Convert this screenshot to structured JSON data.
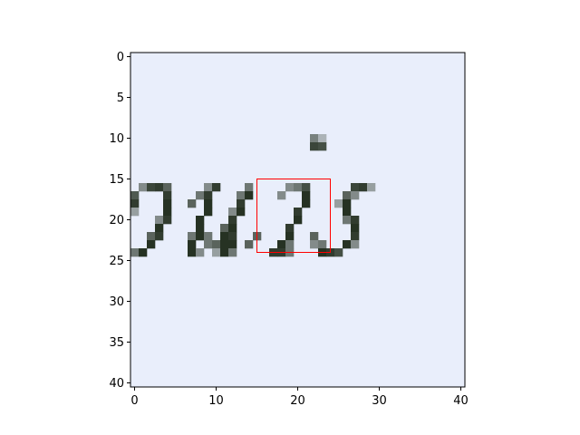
{
  "chart_data": {
    "type": "heatmap",
    "title": "",
    "xlabel": "",
    "ylabel": "",
    "xlim": [
      -0.5,
      40.5
    ],
    "ylim": [
      40.5,
      -0.5
    ],
    "x_ticks": [
      0,
      10,
      20,
      30,
      40
    ],
    "y_ticks": [
      0,
      5,
      10,
      15,
      20,
      25,
      30,
      35,
      40
    ],
    "grid": false,
    "background_color": "#e9eefb",
    "highlight_box": {
      "x": [
        15,
        24
      ],
      "y": [
        15,
        24
      ],
      "color": "#ff0000"
    },
    "ink_pixels": [
      {
        "x": 22,
        "y": 10,
        "v": 0.55
      },
      {
        "x": 23,
        "y": 10,
        "v": 0.3
      },
      {
        "x": 22,
        "y": 11,
        "v": 0.85
      },
      {
        "x": 23,
        "y": 11,
        "v": 0.8
      },
      {
        "x": 1,
        "y": 16,
        "v": 0.5
      },
      {
        "x": 2,
        "y": 16,
        "v": 0.85
      },
      {
        "x": 3,
        "y": 16,
        "v": 0.9
      },
      {
        "x": 4,
        "y": 16,
        "v": 0.7
      },
      {
        "x": 9,
        "y": 16,
        "v": 0.5
      },
      {
        "x": 10,
        "y": 16,
        "v": 0.9
      },
      {
        "x": 14,
        "y": 16,
        "v": 0.6
      },
      {
        "x": 19,
        "y": 16,
        "v": 0.5
      },
      {
        "x": 20,
        "y": 16,
        "v": 0.6
      },
      {
        "x": 21,
        "y": 16,
        "v": 0.8
      },
      {
        "x": 27,
        "y": 16,
        "v": 0.85
      },
      {
        "x": 28,
        "y": 16,
        "v": 0.9
      },
      {
        "x": 29,
        "y": 16,
        "v": 0.4
      },
      {
        "x": 0,
        "y": 17,
        "v": 0.75
      },
      {
        "x": 4,
        "y": 17,
        "v": 0.9
      },
      {
        "x": 8,
        "y": 17,
        "v": 0.6
      },
      {
        "x": 9,
        "y": 17,
        "v": 0.9
      },
      {
        "x": 13,
        "y": 17,
        "v": 0.6
      },
      {
        "x": 14,
        "y": 17,
        "v": 0.95
      },
      {
        "x": 18,
        "y": 17,
        "v": 0.5
      },
      {
        "x": 21,
        "y": 17,
        "v": 0.95
      },
      {
        "x": 26,
        "y": 17,
        "v": 0.7
      },
      {
        "x": 27,
        "y": 17,
        "v": 0.5
      },
      {
        "x": 0,
        "y": 18,
        "v": 0.9
      },
      {
        "x": 4,
        "y": 18,
        "v": 0.95
      },
      {
        "x": 7,
        "y": 18,
        "v": 0.7
      },
      {
        "x": 9,
        "y": 18,
        "v": 0.95
      },
      {
        "x": 13,
        "y": 18,
        "v": 0.9
      },
      {
        "x": 21,
        "y": 18,
        "v": 0.95
      },
      {
        "x": 25,
        "y": 18,
        "v": 0.4
      },
      {
        "x": 26,
        "y": 18,
        "v": 0.95
      },
      {
        "x": 0,
        "y": 19,
        "v": 0.4
      },
      {
        "x": 4,
        "y": 19,
        "v": 0.95
      },
      {
        "x": 9,
        "y": 19,
        "v": 0.95
      },
      {
        "x": 12,
        "y": 19,
        "v": 0.5
      },
      {
        "x": 13,
        "y": 19,
        "v": 0.95
      },
      {
        "x": 20,
        "y": 19,
        "v": 0.9
      },
      {
        "x": 26,
        "y": 19,
        "v": 0.95
      },
      {
        "x": 3,
        "y": 20,
        "v": 0.5
      },
      {
        "x": 4,
        "y": 20,
        "v": 0.9
      },
      {
        "x": 8,
        "y": 20,
        "v": 0.95
      },
      {
        "x": 12,
        "y": 20,
        "v": 0.9
      },
      {
        "x": 20,
        "y": 20,
        "v": 0.95
      },
      {
        "x": 26,
        "y": 20,
        "v": 0.6
      },
      {
        "x": 27,
        "y": 20,
        "v": 0.9
      },
      {
        "x": 3,
        "y": 21,
        "v": 0.95
      },
      {
        "x": 8,
        "y": 21,
        "v": 0.95
      },
      {
        "x": 11,
        "y": 21,
        "v": 0.7
      },
      {
        "x": 12,
        "y": 21,
        "v": 0.95
      },
      {
        "x": 19,
        "y": 21,
        "v": 0.9
      },
      {
        "x": 27,
        "y": 21,
        "v": 0.95
      },
      {
        "x": 2,
        "y": 22,
        "v": 0.7
      },
      {
        "x": 3,
        "y": 22,
        "v": 0.9
      },
      {
        "x": 7,
        "y": 22,
        "v": 0.6
      },
      {
        "x": 8,
        "y": 22,
        "v": 0.95
      },
      {
        "x": 9,
        "y": 22,
        "v": 0.6
      },
      {
        "x": 11,
        "y": 22,
        "v": 0.95
      },
      {
        "x": 12,
        "y": 22,
        "v": 0.9
      },
      {
        "x": 15,
        "y": 22,
        "v": 0.7
      },
      {
        "x": 19,
        "y": 22,
        "v": 0.95
      },
      {
        "x": 22,
        "y": 22,
        "v": 0.7
      },
      {
        "x": 27,
        "y": 22,
        "v": 0.9
      },
      {
        "x": 2,
        "y": 23,
        "v": 0.95
      },
      {
        "x": 7,
        "y": 23,
        "v": 0.95
      },
      {
        "x": 9,
        "y": 23,
        "v": 0.6
      },
      {
        "x": 10,
        "y": 23,
        "v": 0.7
      },
      {
        "x": 11,
        "y": 23,
        "v": 0.95
      },
      {
        "x": 12,
        "y": 23,
        "v": 0.95
      },
      {
        "x": 14,
        "y": 23,
        "v": 0.7
      },
      {
        "x": 18,
        "y": 23,
        "v": 0.95
      },
      {
        "x": 19,
        "y": 23,
        "v": 0.6
      },
      {
        "x": 22,
        "y": 23,
        "v": 0.5
      },
      {
        "x": 23,
        "y": 23,
        "v": 0.6
      },
      {
        "x": 26,
        "y": 23,
        "v": 0.95
      },
      {
        "x": 27,
        "y": 23,
        "v": 0.5
      },
      {
        "x": 0,
        "y": 24,
        "v": 0.6
      },
      {
        "x": 1,
        "y": 24,
        "v": 0.95
      },
      {
        "x": 7,
        "y": 24,
        "v": 0.95
      },
      {
        "x": 8,
        "y": 24,
        "v": 0.5
      },
      {
        "x": 10,
        "y": 24,
        "v": 0.4
      },
      {
        "x": 11,
        "y": 24,
        "v": 0.95
      },
      {
        "x": 12,
        "y": 24,
        "v": 0.6
      },
      {
        "x": 17,
        "y": 24,
        "v": 0.9
      },
      {
        "x": 18,
        "y": 24,
        "v": 0.9
      },
      {
        "x": 19,
        "y": 24,
        "v": 0.6
      },
      {
        "x": 23,
        "y": 24,
        "v": 0.95
      },
      {
        "x": 24,
        "y": 24,
        "v": 0.9
      },
      {
        "x": 25,
        "y": 24,
        "v": 0.8
      }
    ]
  }
}
